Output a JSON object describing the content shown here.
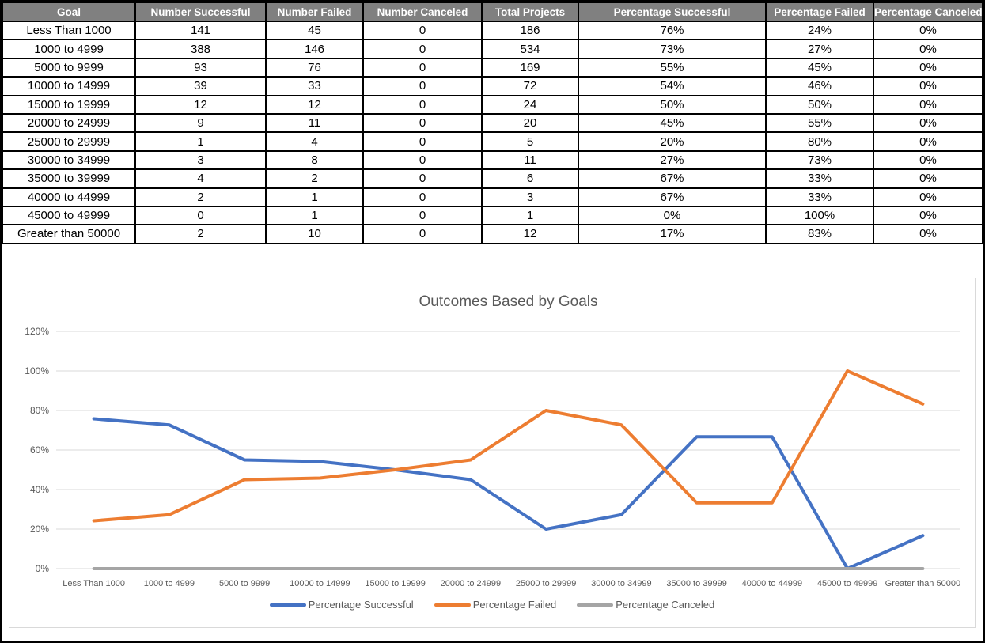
{
  "table": {
    "columns": [
      "Goal",
      "Number Successful",
      "Number Failed",
      "Number Canceled",
      "Total Projects",
      "Percentage Successful",
      "Percentage Failed",
      "Percentage Canceled"
    ],
    "rows": [
      [
        "Less Than 1000",
        "141",
        "45",
        "0",
        "186",
        "76%",
        "24%",
        "0%"
      ],
      [
        "1000 to 4999",
        "388",
        "146",
        "0",
        "534",
        "73%",
        "27%",
        "0%"
      ],
      [
        "5000 to 9999",
        "93",
        "76",
        "0",
        "169",
        "55%",
        "45%",
        "0%"
      ],
      [
        "10000 to 14999",
        "39",
        "33",
        "0",
        "72",
        "54%",
        "46%",
        "0%"
      ],
      [
        "15000 to 19999",
        "12",
        "12",
        "0",
        "24",
        "50%",
        "50%",
        "0%"
      ],
      [
        "20000 to 24999",
        "9",
        "11",
        "0",
        "20",
        "45%",
        "55%",
        "0%"
      ],
      [
        "25000 to 29999",
        "1",
        "4",
        "0",
        "5",
        "20%",
        "80%",
        "0%"
      ],
      [
        "30000 to 34999",
        "3",
        "8",
        "0",
        "11",
        "27%",
        "73%",
        "0%"
      ],
      [
        "35000 to 39999",
        "4",
        "2",
        "0",
        "6",
        "67%",
        "33%",
        "0%"
      ],
      [
        "40000 to 44999",
        "2",
        "1",
        "0",
        "3",
        "67%",
        "33%",
        "0%"
      ],
      [
        "45000 to 49999",
        "0",
        "1",
        "0",
        "1",
        "0%",
        "100%",
        "0%"
      ],
      [
        "Greater than 50000",
        "2",
        "10",
        "0",
        "12",
        "17%",
        "83%",
        "0%"
      ]
    ]
  },
  "chart_data": {
    "type": "line",
    "title": "Outcomes Based by Goals",
    "categories": [
      "Less Than 1000",
      "1000 to 4999",
      "5000 to 9999",
      "10000 to 14999",
      "15000 to 19999",
      "20000 to 24999",
      "25000 to 29999",
      "30000 to 34999",
      "35000 to 39999",
      "40000 to 44999",
      "45000 to 49999",
      "Greater than 50000"
    ],
    "series": [
      {
        "name": "Percentage Successful",
        "color": "#4472C4",
        "values": [
          75.8,
          72.7,
          55.0,
          54.2,
          50.0,
          45.0,
          20.0,
          27.3,
          66.7,
          66.7,
          0.0,
          16.7
        ]
      },
      {
        "name": "Percentage Failed",
        "color": "#ED7D31",
        "values": [
          24.2,
          27.3,
          45.0,
          45.8,
          50.0,
          55.0,
          80.0,
          72.7,
          33.3,
          33.3,
          100.0,
          83.3
        ]
      },
      {
        "name": "Percentage Canceled",
        "color": "#A5A5A5",
        "values": [
          0,
          0,
          0,
          0,
          0,
          0,
          0,
          0,
          0,
          0,
          0,
          0
        ]
      }
    ],
    "xlabel": "",
    "ylabel": "",
    "ylim": [
      0,
      120
    ],
    "yticks": [
      "0%",
      "20%",
      "40%",
      "60%",
      "80%",
      "100%",
      "120%"
    ],
    "grid": true,
    "legend_position": "bottom"
  },
  "style": {
    "header_bg": "#808080",
    "header_text": "#FFFFFF",
    "axis_text": "#595959",
    "gridline": "#D9D9D9",
    "chart_border": "#D9D9D9"
  }
}
